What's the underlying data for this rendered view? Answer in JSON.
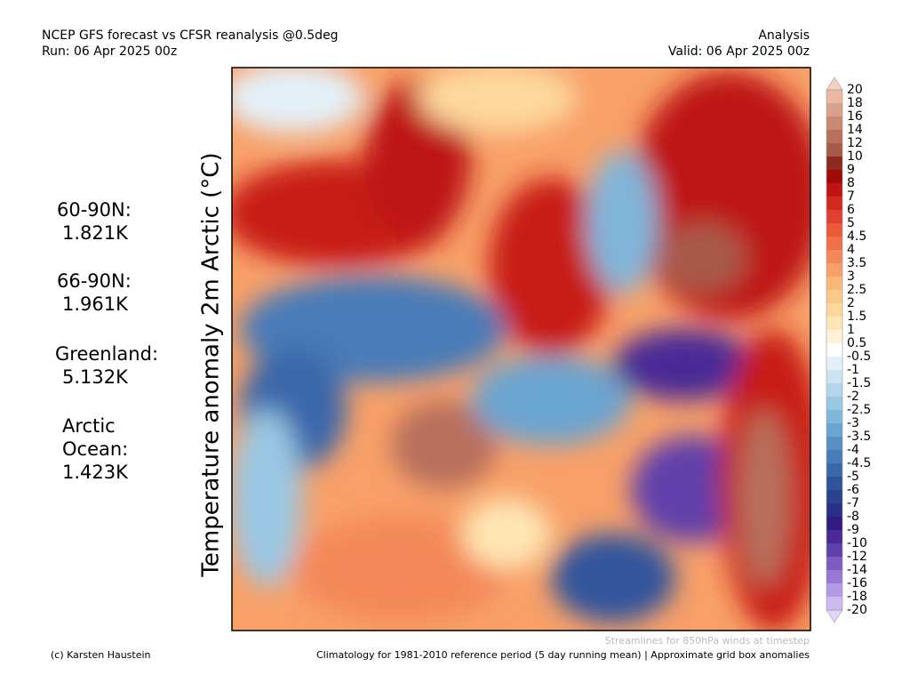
{
  "header": {
    "title": "NCEP GFS forecast vs CFSR reanalysis @0.5deg",
    "run": "Run: 06 Apr 2025 00z",
    "mode": "Analysis",
    "valid": "Valid: 06 Apr 2025 00z"
  },
  "axis_label": "Temperature anomaly 2m Arctic (°C)",
  "stats": [
    {
      "lines": [
        "60-90N:",
        "1.821K"
      ]
    },
    {
      "lines": [
        "66-90N:",
        "1.961K"
      ]
    },
    {
      "lines": [
        "Greenland:",
        "5.132K"
      ]
    },
    {
      "lines": [
        "Arctic",
        "Ocean:",
        "1.423K"
      ]
    }
  ],
  "colorbar": {
    "labels": [
      "20",
      "18",
      "16",
      "14",
      "12",
      "10",
      "9",
      "8",
      "7",
      "6",
      "5",
      "4.5",
      "4",
      "3.5",
      "3",
      "2.5",
      "2",
      "1.5",
      "1",
      "0.5",
      "-0.5",
      "-1",
      "-1.5",
      "-2",
      "-2.5",
      "-3",
      "-3.5",
      "-4",
      "-4.5",
      "-5",
      "-6",
      "-7",
      "-8",
      "-9",
      "-10",
      "-12",
      "-14",
      "-16",
      "-18",
      "-20"
    ],
    "colors": [
      "#f5d0c0",
      "#e8b8a0",
      "#d9a08a",
      "#c98a72",
      "#b8705c",
      "#a85a48",
      "#8c2a20",
      "#a00a0a",
      "#be1414",
      "#d22a1e",
      "#e04030",
      "#e85a3a",
      "#f07048",
      "#f48858",
      "#f8a068",
      "#fab878",
      "#fcc88a",
      "#fdd89c",
      "#fee6b4",
      "#fff2d8",
      "#ffffff",
      "#e4f0f8",
      "#cce4f2",
      "#b4d6ec",
      "#9ac8e4",
      "#80b6da",
      "#6aa4d0",
      "#5890c4",
      "#487cb8",
      "#3a68aa",
      "#30549c",
      "#28428e",
      "#28308a",
      "#301c80",
      "#4a2a96",
      "#6040aa",
      "#7c5cc0",
      "#9878d4",
      "#b49ae4",
      "#ccbaf0",
      "#e0d4f8"
    ]
  },
  "footer": {
    "credit": "(c) Karsten Haustein",
    "streamlines": "Streamlines for 850hPa winds at timestep",
    "climatology": "Climatology for 1981-2010 reference period (5 day running mean) | Approximate grid box anomalies"
  }
}
